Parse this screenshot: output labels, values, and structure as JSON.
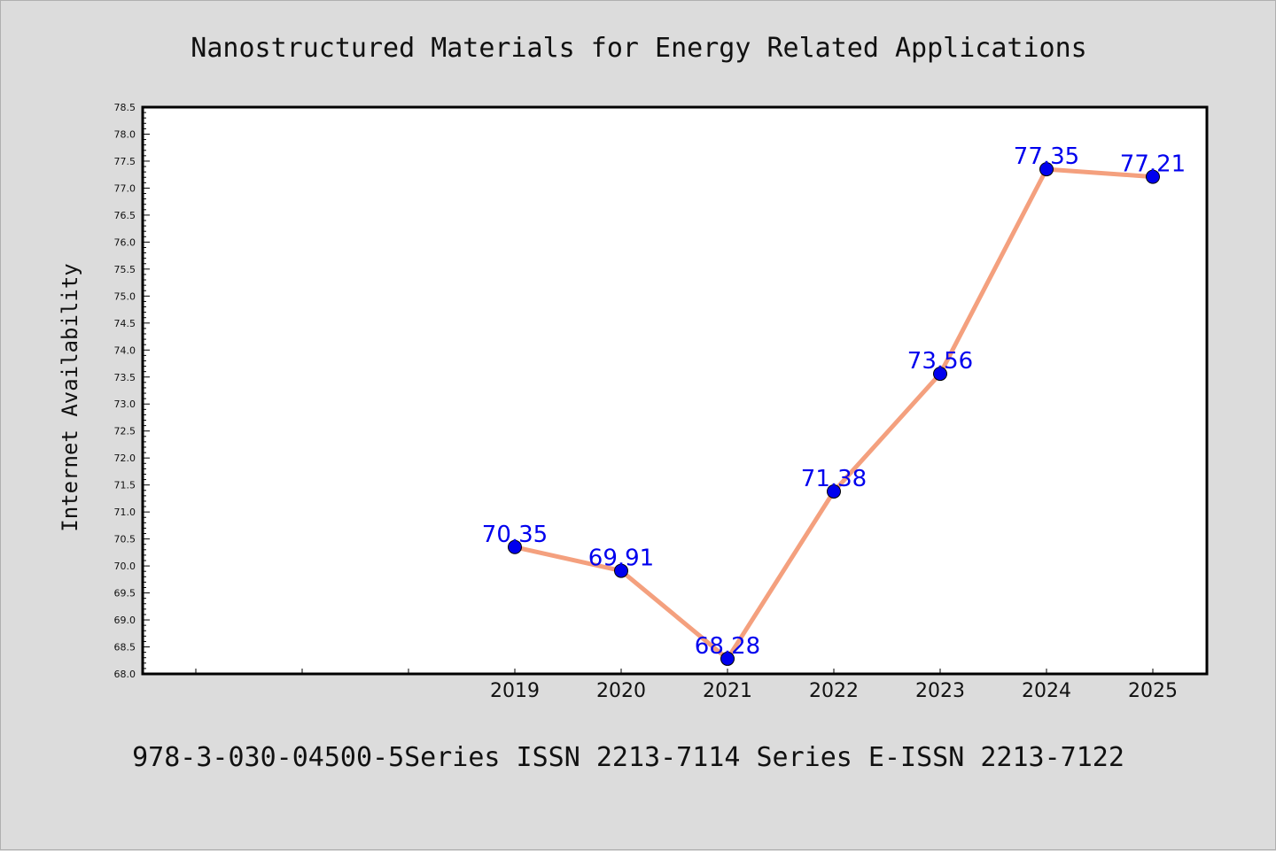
{
  "chart_data": {
    "type": "line",
    "title": "Nanostructured Materials for Energy Related Applications",
    "ylabel": "Internet Availability",
    "xlabel": "",
    "footer": "978-3-030-04500-5Series ISSN 2213-7114 Series E-ISSN 2213-7122",
    "categories": [
      "2019",
      "2020",
      "2021",
      "2022",
      "2023",
      "2024",
      "2025"
    ],
    "series": [
      {
        "values": [
          70.35,
          69.91,
          68.28,
          71.38,
          73.56,
          77.35,
          77.21
        ],
        "labels": [
          "70.35",
          "69.91",
          "68.28",
          "71.38",
          "73.56",
          "77.35",
          "77.21"
        ]
      }
    ],
    "ylim": [
      68.0,
      78.5
    ],
    "yticks": [
      "68.0",
      "68.5",
      "69.0",
      "69.5",
      "70.0",
      "70.5",
      "71.0",
      "71.5",
      "72.0",
      "72.5",
      "73.0",
      "73.5",
      "74.0",
      "74.5",
      "75.0",
      "75.5",
      "76.0",
      "76.5",
      "77.0",
      "77.5",
      "78.0",
      "78.5"
    ],
    "grid": false,
    "colors": {
      "line": "#f4a07e",
      "marker": "#0000ee",
      "label": "#0000ee",
      "background": "#dcdcdc",
      "plot_area": "#ffffff"
    }
  }
}
